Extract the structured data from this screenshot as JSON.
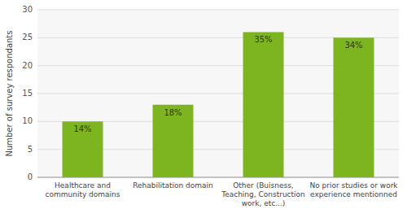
{
  "chart_data": {
    "type": "bar",
    "categories": [
      "Healthcare and\ncommunity domains",
      "Rehabilitation domain",
      "Other (Buisness,\nTeaching, Construction\nwork, etc...)",
      "No prior studies or work\nexperience mentionned"
    ],
    "values": [
      10,
      13,
      26,
      25
    ],
    "shares": [
      14,
      18,
      35,
      34
    ],
    "share_labels": [
      "14%",
      "18%",
      "35%",
      "34%"
    ],
    "color": "#7db521",
    "ylabel": "Number of survey respondants",
    "ylim": [
      0,
      30
    ],
    "yticks": [
      0,
      5,
      10,
      15,
      20,
      25,
      30
    ],
    "grid": true
  }
}
